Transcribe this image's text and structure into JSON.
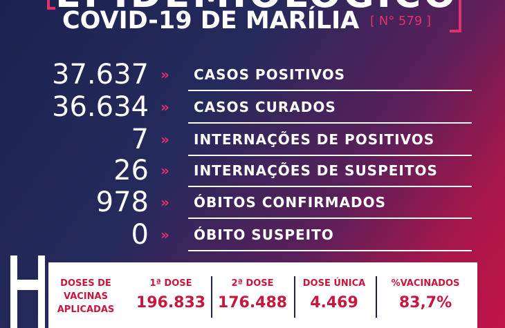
{
  "header": {
    "word": "EPIDEMIOLÓGICO",
    "title": "COVID-19 DE MARÍLIA",
    "edition": "[ N° 579 ]"
  },
  "rows": [
    {
      "number": "37.637",
      "label": "CASOS POSITIVOS"
    },
    {
      "number": "36.634",
      "label": "CASOS CURADOS"
    },
    {
      "number": "7",
      "label": "INTERNAÇÕES DE POSITIVOS"
    },
    {
      "number": "26",
      "label": "INTERNAÇÕES DE SUSPEITOS"
    },
    {
      "number": "978",
      "label": "ÓBITOS CONFIRMADOS"
    },
    {
      "number": "0",
      "label": "ÓBITO SUSPEITO"
    }
  ],
  "arrow": "»",
  "vaccines": {
    "title_lines": [
      "DOSES DE",
      "VACINAS",
      "APLICADAS"
    ],
    "columns": [
      {
        "header": "1ª DOSE",
        "value": "196.833"
      },
      {
        "header": "2ª DOSE",
        "value": "176.488"
      },
      {
        "header": "DOSE ÚNICA",
        "value": "4.469"
      },
      {
        "header": "%VACINADOS",
        "value": "83,7%"
      }
    ]
  }
}
